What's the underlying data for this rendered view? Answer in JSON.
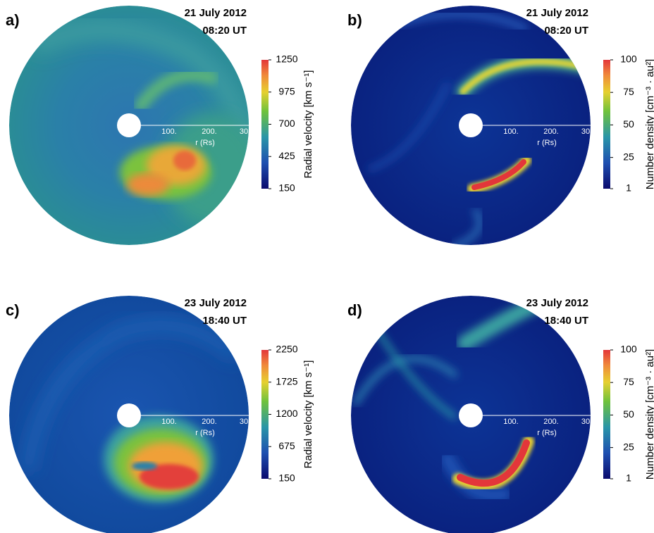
{
  "panels": [
    {
      "label": "a)",
      "date": "21 July 2012",
      "time": "08:20 UT",
      "colorbar": {
        "title": "Radial velocity [km s⁻¹]",
        "ticks": [
          1250,
          975,
          700,
          425,
          150
        ]
      },
      "axis": {
        "ticks": [
          "100.",
          "200.",
          "30"
        ],
        "label": "r (Rs)"
      }
    },
    {
      "label": "b)",
      "date": "21 July 2012",
      "time": "08:20 UT",
      "colorbar": {
        "title": "Number density [cm⁻³ · au²]",
        "ticks": [
          100,
          75,
          50,
          25,
          1
        ]
      },
      "axis": {
        "ticks": [
          "100.",
          "200.",
          "30"
        ],
        "label": "r (Rs)"
      }
    },
    {
      "label": "c)",
      "date": "23 July 2012",
      "time": "18:40 UT",
      "colorbar": {
        "title": "Radial velocity [km s⁻¹]",
        "ticks": [
          2250,
          1725,
          1200,
          675,
          150
        ]
      },
      "axis": {
        "ticks": [
          "100.",
          "200.",
          "30"
        ],
        "label": "r (Rs)"
      }
    },
    {
      "label": "d)",
      "date": "23 July 2012",
      "time": "18:40 UT",
      "colorbar": {
        "title": "Number density [cm⁻³ · au²]",
        "ticks": [
          100,
          75,
          50,
          25,
          1
        ]
      },
      "axis": {
        "ticks": [
          "100.",
          "200.",
          "30"
        ],
        "label": "r (Rs)"
      }
    }
  ]
}
